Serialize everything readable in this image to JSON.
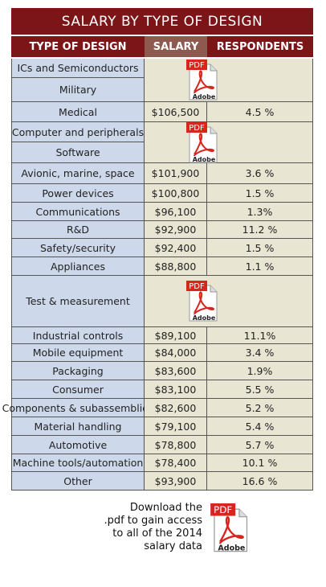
{
  "header": {
    "title": "SALARY BY TYPE OF DESIGN",
    "columns": [
      "TYPE OF DESIGN",
      "SALARY",
      "RESPONDENTS"
    ]
  },
  "table": {
    "rows": [
      {
        "type": "ICs and Semiconductors"
      },
      {
        "type": "Military"
      },
      {
        "type": "Medical",
        "salary": "$106,500",
        "respondents": "4.5 %"
      },
      {
        "type": "Computer and peripherals"
      },
      {
        "type": "Software"
      },
      {
        "type": "Avionic, marine, space",
        "salary": "$101,900",
        "respondents": "3.6 %"
      },
      {
        "type": "Power devices",
        "salary": "$100,800",
        "respondents": "1.5 %"
      },
      {
        "type": "Communications",
        "salary": "$96,100",
        "respondents": "1.3%"
      },
      {
        "type": "R&D",
        "salary": "$92,900",
        "respondents": "11.2 %"
      },
      {
        "type": "Safety/security",
        "salary": "$92,400",
        "respondents": "1.5 %"
      },
      {
        "type": "Appliances",
        "salary": "$88,800",
        "respondents": "1.1 %"
      },
      {
        "type": "Test & measurement"
      },
      {
        "type": "Industrial controls",
        "salary": "$89,100",
        "respondents": "11.1%"
      },
      {
        "type": "Mobile equipment",
        "salary": "$84,000",
        "respondents": "3.4 %"
      },
      {
        "type": "Packaging",
        "salary": "$83,600",
        "respondents": "1.9%"
      },
      {
        "type": "Consumer",
        "salary": "$83,100",
        "respondents": "5.5 %"
      },
      {
        "type": "Components & subassemblies",
        "salary": "$82,600",
        "respondents": "5.2 %"
      },
      {
        "type": "Material handling",
        "salary": "$79,100",
        "respondents": "5.4 %"
      },
      {
        "type": "Automotive",
        "salary": "$78,800",
        "respondents": "5.7 %"
      },
      {
        "type": "Machine tools/automation",
        "salary": "$78,400",
        "respondents": "10.1 %"
      },
      {
        "type": "Other",
        "salary": "$93,900",
        "respondents": "16.6 %"
      }
    ]
  },
  "pdf_icon": {
    "badge": "PDF",
    "brand": "Adobe"
  },
  "footer": {
    "lines": [
      "Download the",
      ".pdf  to gain access",
      "to all of the  2014",
      "salary data"
    ]
  }
}
